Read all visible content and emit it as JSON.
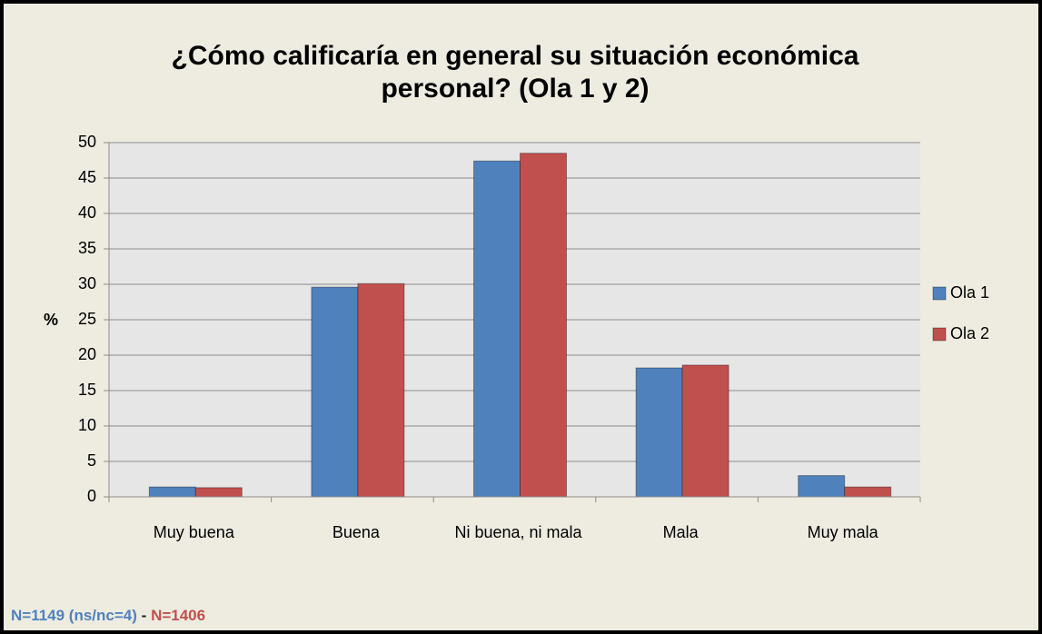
{
  "chart_data": {
    "type": "bar",
    "title": "¿Cómo calificaría en general su situación económica personal? (Ola 1 y 2)",
    "y_label": "%",
    "categories": [
      "Muy buena",
      "Buena",
      "Ni buena, ni mala",
      "Mala",
      "Muy mala"
    ],
    "series": [
      {
        "name": "Ola 1",
        "color": "#4f81bd",
        "values": [
          1.4,
          29.6,
          47.4,
          18.2,
          3.0
        ]
      },
      {
        "name": "Ola 2",
        "color": "#c0504d",
        "values": [
          1.3,
          30.1,
          48.5,
          18.6,
          1.4
        ]
      }
    ],
    "ylim": [
      0,
      50
    ],
    "yticks": [
      0,
      5,
      10,
      15,
      20,
      25,
      30,
      35,
      40,
      45,
      50
    ],
    "grid": true,
    "legend": "right",
    "footer": [
      {
        "text": "N=1149 (ns/nc=4)",
        "color": "#4f81bd"
      },
      {
        "text": "-",
        "color": "#1f1f1f"
      },
      {
        "text": "N=1406",
        "color": "#c0504d"
      }
    ]
  }
}
